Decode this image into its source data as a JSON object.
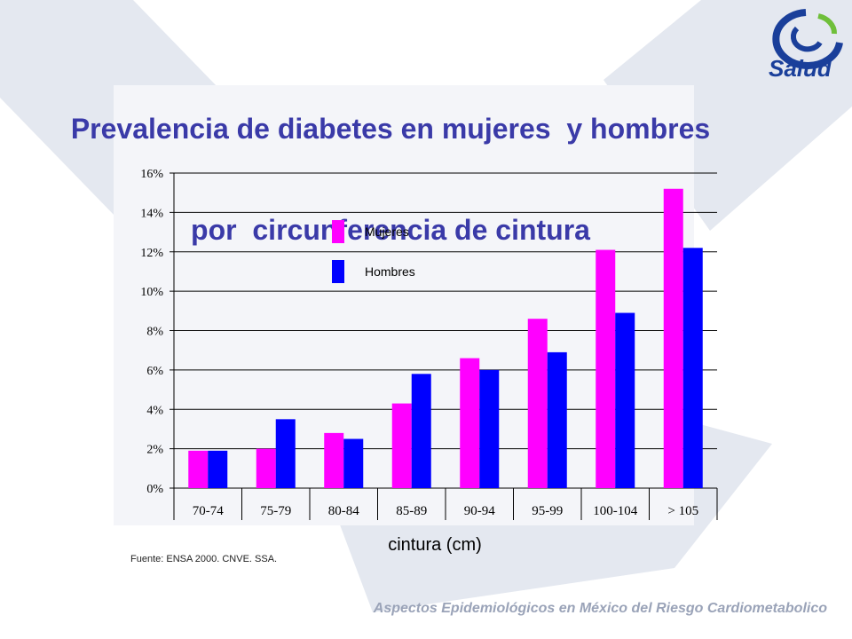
{
  "slide": {
    "title_line1": "Prevalencia de diabetes en mujeres  y hombres",
    "title_line2": "por  circunferencia de cintura",
    "logo_text": "Salud",
    "source": "Fuente: ENSA 2000.  CNVE.  SSA.",
    "footer": "Aspectos Epidemiológicos en México del Riesgo Cardiometabolico"
  },
  "colors": {
    "mujeres": "#ff00ff",
    "hombres": "#0000ff",
    "title": "#3a3aa8",
    "background_shape": "#e4e8f0"
  },
  "chart_data": {
    "type": "bar",
    "title": "Prevalencia de diabetes en mujeres y hombres por circunferencia de cintura",
    "xlabel": "cintura (cm)",
    "ylabel": "",
    "categories": [
      "70-74",
      "75-79",
      "80-84",
      "85-89",
      "90-94",
      "95-99",
      "100-104",
      "> 105"
    ],
    "series": [
      {
        "name": "Mujeres",
        "color": "#ff00ff",
        "values": [
          1.9,
          2.0,
          2.8,
          4.3,
          6.6,
          8.6,
          12.1,
          15.2
        ]
      },
      {
        "name": "Hombres",
        "color": "#0000ff",
        "values": [
          1.9,
          3.5,
          2.5,
          5.8,
          6.0,
          6.9,
          8.9,
          12.2
        ]
      }
    ],
    "ylim": [
      0,
      16
    ],
    "yticks": [
      0,
      2,
      4,
      6,
      8,
      10,
      12,
      14,
      16
    ],
    "ytick_labels": [
      "0%",
      "2%",
      "4%",
      "6%",
      "8%",
      "10%",
      "12%",
      "14%",
      "16%"
    ],
    "grid": true,
    "legend_position": "top-left"
  }
}
